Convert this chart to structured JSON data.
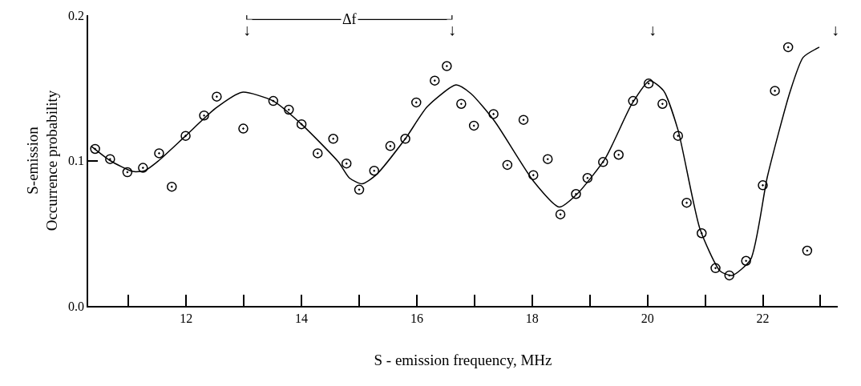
{
  "chart_data": {
    "type": "scatter",
    "xlabel": "S - emission frequency, MHz",
    "ylabel": "S-emission\nOccurrence probability",
    "xlim": [
      10.3,
      23.3
    ],
    "xticks": [
      {
        "value": 11,
        "label": null
      },
      12,
      {
        "value": 13,
        "label": null
      },
      14,
      {
        "value": 15,
        "label": null
      },
      16,
      {
        "value": 17,
        "label": null
      },
      18,
      {
        "value": 19,
        "label": null
      },
      20,
      {
        "value": 21,
        "label": null
      },
      22,
      {
        "value": 23,
        "label": null
      }
    ],
    "ylim": [
      0,
      0.2
    ],
    "yticks": [
      {
        "value": 0,
        "label": "0.0"
      },
      {
        "value": 0.1,
        "label": "0.1"
      },
      {
        "value": 0.2,
        "label": "0.2"
      }
    ],
    "grid": false,
    "marker": "circle",
    "series": [
      {
        "color": "#000000",
        "x": [
          10.42,
          10.68,
          10.98,
          11.25,
          11.53,
          11.75,
          11.99,
          12.31,
          12.53,
          12.99,
          13.51,
          13.78,
          14.0,
          14.28,
          14.55,
          14.78,
          15.0,
          15.26,
          15.54,
          15.8,
          15.99,
          16.31,
          16.52,
          16.77,
          16.99,
          17.33,
          17.57,
          17.85,
          18.02,
          18.27,
          18.49,
          18.76,
          18.96,
          19.23,
          19.5,
          19.75,
          20.02,
          20.26,
          20.53,
          20.68,
          20.94,
          21.18,
          21.42,
          21.71,
          22.0,
          22.21,
          22.44,
          22.77
        ],
        "values": [
          0.108,
          0.101,
          0.092,
          0.095,
          0.105,
          0.082,
          0.117,
          0.131,
          0.144,
          0.122,
          0.141,
          0.135,
          0.125,
          0.105,
          0.115,
          0.098,
          0.08,
          0.093,
          0.11,
          0.115,
          0.14,
          0.155,
          0.165,
          0.139,
          0.124,
          0.132,
          0.097,
          0.128,
          0.09,
          0.101,
          0.063,
          0.077,
          0.088,
          0.099,
          0.104,
          0.141,
          0.153,
          0.139,
          0.117,
          0.071,
          0.05,
          0.026,
          0.021,
          0.031,
          0.083,
          0.148,
          0.178,
          0.038
        ]
      },
      {
        "type": "line",
        "color": "#000000",
        "marker": "none",
        "line_style": "solid",
        "x": [
          10.35,
          10.68,
          11.07,
          11.28,
          11.51,
          11.99,
          12.51,
          12.97,
          13.51,
          14.0,
          14.64,
          14.83,
          15.05,
          15.29,
          15.8,
          16.18,
          16.68,
          16.94,
          17.35,
          18.02,
          18.47,
          18.78,
          19.27,
          19.73,
          20.04,
          20.28,
          20.53,
          20.91,
          21.26,
          21.47,
          21.79,
          22.08,
          22.47,
          22.7,
          22.98
        ],
        "values": [
          0.11,
          0.1,
          0.0925,
          0.093,
          0.0995,
          0.117,
          0.136,
          0.147,
          0.141,
          0.125,
          0.099,
          0.088,
          0.084,
          0.09,
          0.115,
          0.137,
          0.152,
          0.146,
          0.127,
          0.086,
          0.068,
          0.077,
          0.1016,
          0.139,
          0.155,
          0.148,
          0.121,
          0.053,
          0.024,
          0.021,
          0.032,
          0.089,
          0.147,
          0.171,
          0.178
        ]
      }
    ],
    "annotations": [
      {
        "text": "↓",
        "x": 13.05,
        "y": 0.19
      },
      {
        "text": "↓",
        "x": 16.61,
        "y": 0.19
      },
      {
        "text": "↓",
        "x": 20.09,
        "y": 0.19
      },
      {
        "text": "↓",
        "x": 23.26,
        "y": 0.19
      },
      {
        "text": "Δf",
        "x": 14.83,
        "y": 0.197
      }
    ]
  }
}
